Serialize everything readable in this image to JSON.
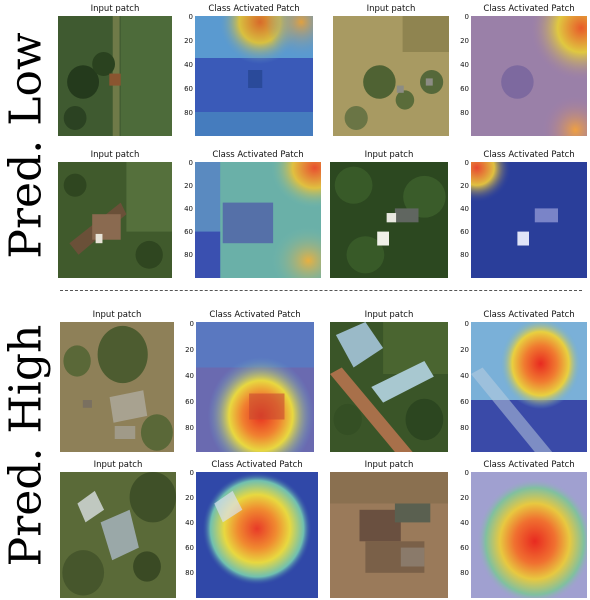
{
  "row_labels": {
    "low": "Pred. Low",
    "high": "Pred. High"
  },
  "titles": {
    "input": "Input patch",
    "cam": "Class Activated Patch"
  },
  "yticks": [
    "0",
    "20",
    "40",
    "60",
    "80"
  ]
}
